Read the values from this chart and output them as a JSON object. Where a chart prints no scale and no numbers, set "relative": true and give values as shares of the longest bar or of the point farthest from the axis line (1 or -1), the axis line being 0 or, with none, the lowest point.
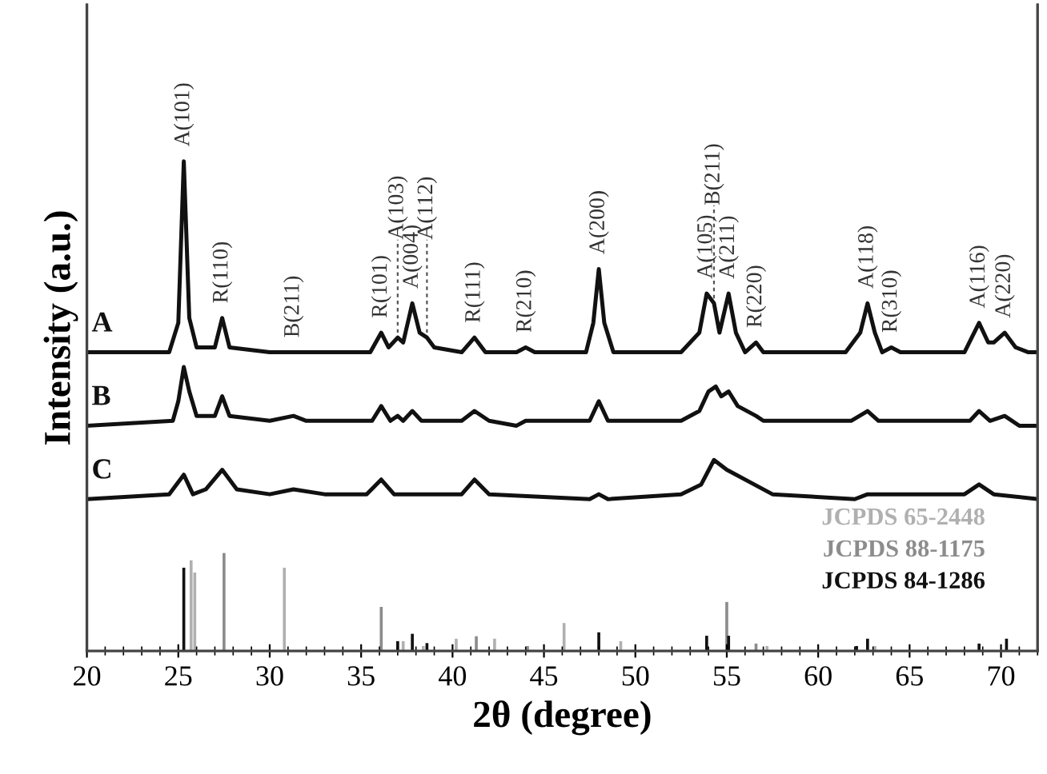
{
  "chart_data": {
    "type": "line",
    "relative": true,
    "xlabel": "2θ (degree)",
    "ylabel": "Intensity (a.u.)",
    "xlim": [
      20,
      72
    ],
    "xticks": [
      20,
      25,
      30,
      35,
      40,
      45,
      50,
      55,
      60,
      65,
      70
    ],
    "line_style": "solid",
    "marker": "none",
    "series": [
      {
        "name": "A",
        "color": "#111111",
        "x": [
          20,
          24.5,
          25.0,
          25.3,
          25.6,
          26.0,
          27.0,
          27.4,
          27.8,
          30,
          35.5,
          36.1,
          36.5,
          37.0,
          37.3,
          37.8,
          38.2,
          38.6,
          39.0,
          40.5,
          41.2,
          41.8,
          43.5,
          44.0,
          44.5,
          47.3,
          47.7,
          48.0,
          48.3,
          48.8,
          52.5,
          53.5,
          53.9,
          54.3,
          54.6,
          55.1,
          55.5,
          56.0,
          56.6,
          57.0,
          61.5,
          62.3,
          62.7,
          63.1,
          63.5,
          64.0,
          64.5,
          68.0,
          68.4,
          68.8,
          69.3,
          69.6,
          70.2,
          70.8,
          71.5,
          72
        ],
        "values": [
          0.61,
          0.61,
          0.67,
          1.0,
          0.68,
          0.62,
          0.62,
          0.68,
          0.62,
          0.61,
          0.61,
          0.65,
          0.62,
          0.64,
          0.63,
          0.71,
          0.65,
          0.64,
          0.62,
          0.61,
          0.64,
          0.61,
          0.61,
          0.62,
          0.61,
          0.61,
          0.67,
          0.78,
          0.67,
          0.61,
          0.61,
          0.65,
          0.73,
          0.71,
          0.65,
          0.73,
          0.65,
          0.61,
          0.63,
          0.61,
          0.61,
          0.65,
          0.71,
          0.65,
          0.61,
          0.62,
          0.61,
          0.61,
          0.64,
          0.67,
          0.63,
          0.63,
          0.65,
          0.62,
          0.61,
          0.61
        ]
      },
      {
        "name": "B",
        "color": "#111111",
        "x": [
          20,
          24.7,
          25.0,
          25.3,
          25.6,
          26.0,
          27.0,
          27.4,
          27.8,
          30,
          31.3,
          32,
          35.6,
          36.1,
          36.6,
          37.0,
          37.3,
          37.8,
          38.3,
          40.5,
          41.2,
          42,
          43.5,
          44,
          47.5,
          48.0,
          48.5,
          52.5,
          53.5,
          54.0,
          54.4,
          54.7,
          55.1,
          55.6,
          56.6,
          57,
          61.8,
          62.7,
          63.3,
          68.3,
          68.8,
          69.4,
          70.2,
          71,
          72
        ],
        "values": [
          0.46,
          0.47,
          0.51,
          0.58,
          0.53,
          0.48,
          0.48,
          0.52,
          0.48,
          0.47,
          0.48,
          0.47,
          0.47,
          0.5,
          0.47,
          0.48,
          0.47,
          0.49,
          0.47,
          0.47,
          0.49,
          0.47,
          0.46,
          0.47,
          0.47,
          0.51,
          0.47,
          0.47,
          0.49,
          0.53,
          0.54,
          0.52,
          0.53,
          0.5,
          0.48,
          0.47,
          0.47,
          0.49,
          0.47,
          0.47,
          0.49,
          0.47,
          0.48,
          0.46,
          0.46
        ]
      },
      {
        "name": "C",
        "color": "#111111",
        "x": [
          20,
          24.5,
          25.3,
          25.8,
          26.5,
          27.4,
          28.2,
          30,
          31.3,
          33,
          35.3,
          36.1,
          36.8,
          40.5,
          41.2,
          42,
          47.5,
          48.0,
          48.5,
          52.5,
          53.6,
          54.3,
          55,
          56.5,
          57.5,
          62,
          62.7,
          64,
          68,
          68.8,
          69.6,
          72
        ],
        "values": [
          0.31,
          0.32,
          0.36,
          0.32,
          0.33,
          0.37,
          0.33,
          0.32,
          0.33,
          0.32,
          0.32,
          0.35,
          0.32,
          0.32,
          0.35,
          0.32,
          0.31,
          0.32,
          0.31,
          0.32,
          0.34,
          0.39,
          0.37,
          0.34,
          0.32,
          0.31,
          0.32,
          0.32,
          0.32,
          0.34,
          0.32,
          0.31
        ]
      },
      {
        "name": "JCPDS 65-2448",
        "type": "bar",
        "color": "#b0b0b0",
        "x": [
          25.7,
          25.9,
          30.8,
          37.3,
          38.4,
          40.2,
          42.3,
          46.1,
          49.2,
          57.2,
          63.1
        ],
        "values": [
          0.185,
          0.16,
          0.17,
          0.02,
          0.01,
          0.025,
          0.025,
          0.057,
          0.02,
          0.01,
          0.01
        ]
      },
      {
        "name": "JCPDS 88-1175",
        "type": "bar",
        "color": "#8c8c8c",
        "x": [
          27.5,
          36.1,
          41.3,
          44.1,
          55.0,
          56.6
        ],
        "values": [
          0.2,
          0.09,
          0.03,
          0.01,
          0.1,
          0.015
        ]
      },
      {
        "name": "JCPDS 84-1286",
        "type": "bar",
        "color": "#111111",
        "x": [
          25.3,
          37.0,
          37.8,
          38.6,
          48.0,
          53.9,
          55.1,
          62.1,
          62.7,
          68.8,
          70.3
        ],
        "values": [
          0.17,
          0.02,
          0.035,
          0.016,
          0.038,
          0.031,
          0.031,
          0.01,
          0.025,
          0.015,
          0.025
        ]
      }
    ],
    "annotations": [
      {
        "text": "A(101)",
        "x": 25.3,
        "y": 1.0
      },
      {
        "text": "R(110)",
        "x": 27.4,
        "y": 0.68
      },
      {
        "text": "B(211)",
        "x": 31.3,
        "y": 0.61
      },
      {
        "text": "R(101)",
        "x": 36.1,
        "y": 0.65
      },
      {
        "text": "A(103)",
        "x": 37.0,
        "y": 0.64
      },
      {
        "text": "A(004)",
        "x": 37.8,
        "y": 0.71
      },
      {
        "text": "A(112)",
        "x": 38.6,
        "y": 0.64
      },
      {
        "text": "R(111)",
        "x": 41.2,
        "y": 0.64
      },
      {
        "text": "R(210)",
        "x": 44.0,
        "y": 0.62
      },
      {
        "text": "A(200)",
        "x": 48.0,
        "y": 0.78
      },
      {
        "text": "A(105)",
        "x": 53.9,
        "y": 0.73
      },
      {
        "text": "B(211)",
        "x": 54.3,
        "y": 0.71
      },
      {
        "text": "A(211)",
        "x": 55.1,
        "y": 0.73
      },
      {
        "text": "R(220)",
        "x": 56.6,
        "y": 0.63
      },
      {
        "text": "A(118)",
        "x": 62.7,
        "y": 0.71
      },
      {
        "text": "R(310)",
        "x": 64.0,
        "y": 0.62
      },
      {
        "text": "A(116)",
        "x": 68.8,
        "y": 0.67
      },
      {
        "text": "A(220)",
        "x": 70.2,
        "y": 0.65
      }
    ]
  }
}
